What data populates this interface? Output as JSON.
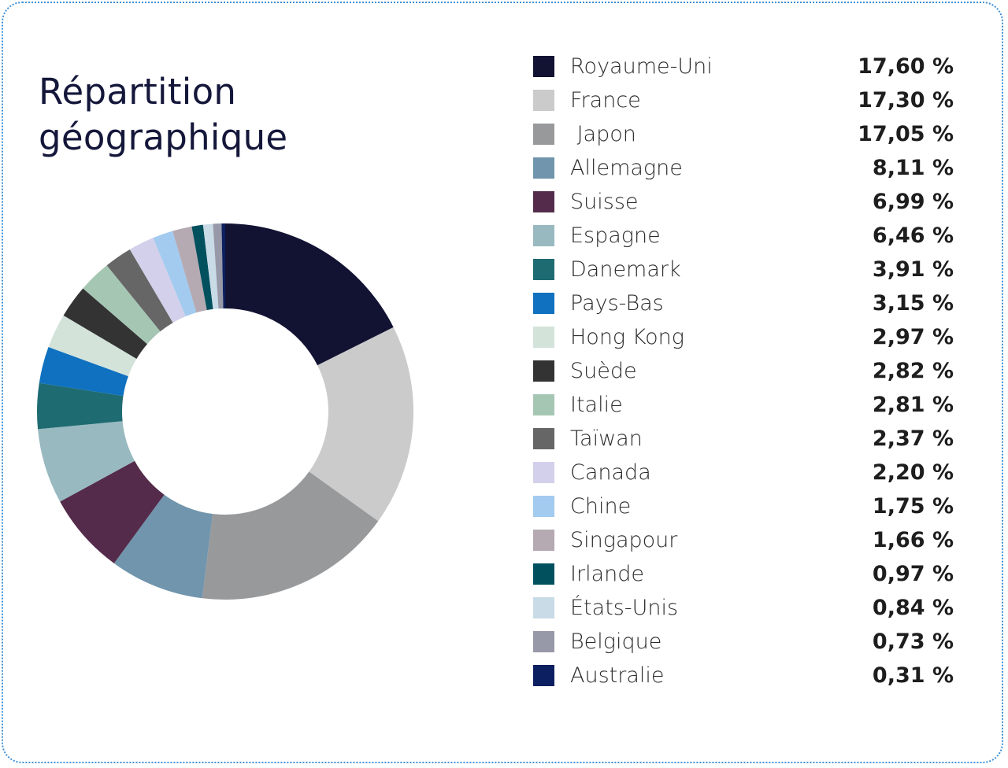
{
  "title": {
    "line1": "Répartition",
    "line2": "géographique"
  },
  "chart_data": {
    "type": "donut",
    "title": "Répartition géographique",
    "unit": "%",
    "slices": [
      {
        "label": "Royaume-Uni",
        "value": 17.6,
        "display": "17,60 %",
        "color": "#121233"
      },
      {
        "label": "France",
        "value": 17.3,
        "display": "17,30 %",
        "color": "#cbcbcb"
      },
      {
        "label": " Japon",
        "value": 17.05,
        "display": "17,05 %",
        "color": "#98999b"
      },
      {
        "label": "Allemagne",
        "value": 8.11,
        "display": "8,11 %",
        "color": "#7095ad"
      },
      {
        "label": "Suisse",
        "value": 6.99,
        "display": "6,99 %",
        "color": "#542b4a"
      },
      {
        "label": "Espagne",
        "value": 6.46,
        "display": "6,46 %",
        "color": "#98b9c0"
      },
      {
        "label": "Danemark",
        "value": 3.91,
        "display": "3,91 %",
        "color": "#1e6b72"
      },
      {
        "label": "Pays-Bas",
        "value": 3.15,
        "display": "3,15 %",
        "color": "#0f71bf"
      },
      {
        "label": "Hong Kong",
        "value": 2.97,
        "display": "2,97 %",
        "color": "#d3e3da"
      },
      {
        "label": "Suède",
        "value": 2.82,
        "display": "2,82 %",
        "color": "#333334"
      },
      {
        "label": "Italie",
        "value": 2.81,
        "display": "2,81 %",
        "color": "#a6c6b4"
      },
      {
        "label": "Taïwan",
        "value": 2.37,
        "display": "2,37 %",
        "color": "#666666"
      },
      {
        "label": "Canada",
        "value": 2.2,
        "display": "2,20 %",
        "color": "#d2d0ea"
      },
      {
        "label": "Chine",
        "value": 1.75,
        "display": "1,75 %",
        "color": "#a2cbef"
      },
      {
        "label": "Singapour",
        "value": 1.66,
        "display": "1,66 %",
        "color": "#b5a9b2"
      },
      {
        "label": "Irlande",
        "value": 0.97,
        "display": "0,97 %",
        "color": "#00505d"
      },
      {
        "label": "États-Unis",
        "value": 0.84,
        "display": "0,84 %",
        "color": "#c8dbe7"
      },
      {
        "label": "Belgique",
        "value": 0.73,
        "display": "0,73 %",
        "color": "#9899a8"
      },
      {
        "label": "Australie",
        "value": 0.31,
        "display": "0,31 %",
        "color": "#0c1f60"
      }
    ],
    "legend_placement": "right"
  }
}
